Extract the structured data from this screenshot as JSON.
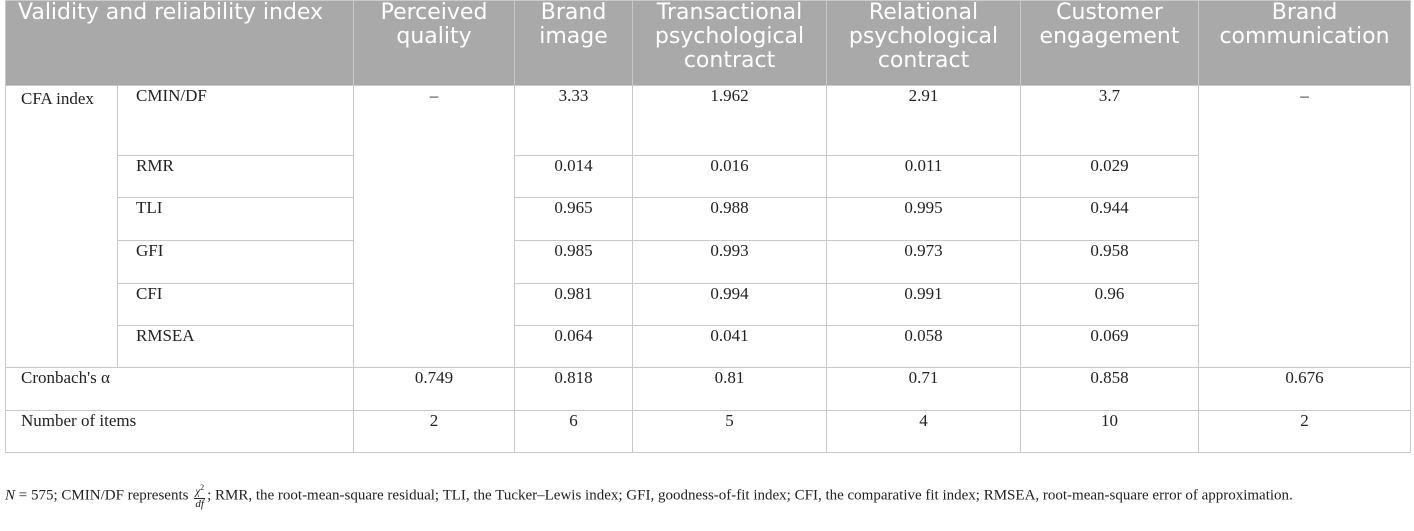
{
  "table": {
    "headers": [
      "Validity and reliability index",
      "Perceived quality",
      "Brand image",
      "Transactional psychological contract",
      "Relational psychological contract",
      "Customer engagement",
      "Brand communication"
    ],
    "group_label": "CFA index",
    "cfa_rows": [
      {
        "label": "CMIN/DF",
        "values": [
          "3.33",
          "1.962",
          "2.91",
          "3.7"
        ]
      },
      {
        "label": "RMR",
        "values": [
          "0.014",
          "0.016",
          "0.011",
          "0.029"
        ]
      },
      {
        "label": "TLI",
        "values": [
          "0.965",
          "0.988",
          "0.995",
          "0.944"
        ]
      },
      {
        "label": "GFI",
        "values": [
          "0.985",
          "0.993",
          "0.973",
          "0.958"
        ]
      },
      {
        "label": "CFI",
        "values": [
          "0.981",
          "0.994",
          "0.991",
          "0.96"
        ]
      },
      {
        "label": "RMSEA",
        "values": [
          "0.064",
          "0.041",
          "0.058",
          "0.069"
        ]
      }
    ],
    "perceived_quality_cfa": "–",
    "brand_communication_cfa": "–",
    "cronbach": {
      "label": "Cronbach's α",
      "values": [
        "0.749",
        "0.818",
        "0.81",
        "0.71",
        "0.858",
        "0.676"
      ]
    },
    "items": {
      "label": "Number of items",
      "values": [
        "2",
        "6",
        "5",
        "4",
        "10",
        "2"
      ]
    }
  },
  "note": {
    "n_symbol": "N",
    "n_rest": " = 575; CMIN/DF represents ",
    "frac_num": "χ",
    "frac_sup": "2",
    "frac_den": "df",
    "rest": "; RMR, the root-mean-square residual; TLI, the Tucker–Lewis index; GFI, goodness-of-fit index; CFI, the comparative fit index; RMSEA, root-mean-square error of approximation."
  }
}
